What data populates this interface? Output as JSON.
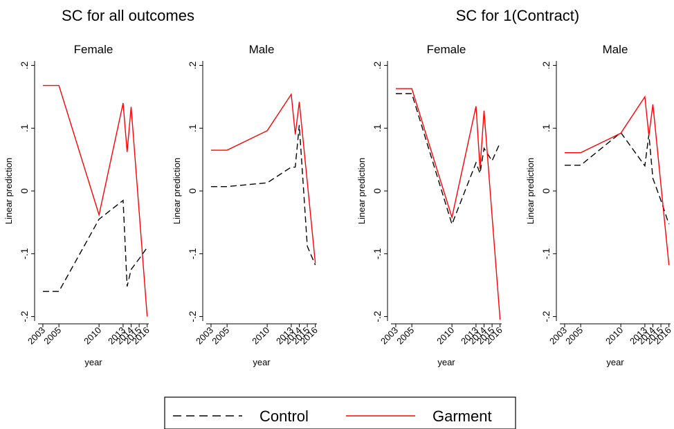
{
  "figure_titles": [
    "SC for all outcomes",
    "SC for 1(Contract)"
  ],
  "chart_data": [
    {
      "type": "line",
      "title": "Female",
      "ylabel": "Linear prediction",
      "xlabel": "year",
      "x": [
        2003,
        2005,
        2010,
        2013,
        2013.5,
        2014,
        2015,
        2016
      ],
      "xlim": [
        2002.4,
        2016.2
      ],
      "xticks": [
        2003,
        2005,
        2010,
        2013,
        2014,
        2015,
        2016
      ],
      "ylim": [
        -0.205,
        0.205
      ],
      "yticks": [
        {
          "value": -0.2,
          "label": "-.2"
        },
        {
          "value": -0.1,
          "label": "-.1"
        },
        0,
        {
          "value": 0.1,
          "label": ".1"
        },
        {
          "value": 0.2,
          "label": ".2"
        }
      ],
      "series": [
        {
          "name": "Control",
          "color": "#000000",
          "dash": true,
          "values": [
            -0.16,
            -0.16,
            -0.045,
            -0.015,
            -0.152,
            -0.125,
            -0.108,
            -0.09
          ]
        },
        {
          "name": "Garment",
          "color": "#ff0000",
          "dash": false,
          "values": [
            0.168,
            0.168,
            -0.038,
            0.14,
            0.062,
            0.134,
            -0.033,
            -0.2
          ]
        }
      ]
    },
    {
      "type": "line",
      "title": "Male",
      "ylabel": "Linear prediction",
      "xlabel": "year",
      "x": [
        2003,
        2005,
        2010,
        2013,
        2013.5,
        2014,
        2015,
        2016
      ],
      "xlim": [
        2002.4,
        2016.2
      ],
      "xticks": [
        2003,
        2005,
        2010,
        2013,
        2014,
        2015,
        2016
      ],
      "ylim": [
        -0.205,
        0.205
      ],
      "yticks": [
        {
          "value": -0.2,
          "label": "-.2"
        },
        {
          "value": -0.1,
          "label": "-.1"
        },
        0,
        {
          "value": 0.1,
          "label": ".1"
        },
        {
          "value": 0.2,
          "label": ".2"
        }
      ],
      "series": [
        {
          "name": "Control",
          "color": "#000000",
          "dash": true,
          "values": [
            0.007,
            0.007,
            0.013,
            0.038,
            0.038,
            0.105,
            -0.088,
            -0.118
          ]
        },
        {
          "name": "Garment",
          "color": "#ff0000",
          "dash": false,
          "values": [
            0.065,
            0.065,
            0.096,
            0.154,
            0.09,
            0.142,
            0.014,
            -0.115
          ]
        }
      ]
    },
    {
      "type": "line",
      "title": "Female",
      "ylabel": "Linear prediction",
      "xlabel": "year",
      "x": [
        2003,
        2005,
        2010,
        2013,
        2013.5,
        2014,
        2015,
        2016
      ],
      "xlim": [
        2002.4,
        2016.2
      ],
      "xticks": [
        2003,
        2005,
        2010,
        2013,
        2014,
        2015,
        2016
      ],
      "ylim": [
        -0.205,
        0.205
      ],
      "yticks": [
        {
          "value": -0.2,
          "label": "-.2"
        },
        {
          "value": -0.1,
          "label": "-.1"
        },
        0,
        {
          "value": 0.1,
          "label": ".1"
        },
        {
          "value": 0.2,
          "label": ".2"
        }
      ],
      "series": [
        {
          "name": "Control",
          "color": "#000000",
          "dash": true,
          "values": [
            0.155,
            0.155,
            -0.053,
            0.045,
            0.028,
            0.068,
            0.048,
            0.077
          ]
        },
        {
          "name": "Garment",
          "color": "#ff0000",
          "dash": false,
          "values": [
            0.163,
            0.163,
            -0.042,
            0.135,
            0.035,
            0.128,
            -0.04,
            -0.205
          ]
        }
      ]
    },
    {
      "type": "line",
      "title": "Male",
      "ylabel": "Linear prediction",
      "xlabel": "year",
      "x": [
        2003,
        2005,
        2010,
        2013,
        2013.5,
        2014,
        2015,
        2016
      ],
      "xlim": [
        2002.4,
        2016.2
      ],
      "xticks": [
        2003,
        2005,
        2010,
        2013,
        2014,
        2015,
        2016
      ],
      "ylim": [
        -0.205,
        0.205
      ],
      "yticks": [
        {
          "value": -0.2,
          "label": "-.2"
        },
        {
          "value": -0.1,
          "label": "-.1"
        },
        0,
        {
          "value": 0.1,
          "label": ".1"
        },
        {
          "value": 0.2,
          "label": ".2"
        }
      ],
      "series": [
        {
          "name": "Control",
          "color": "#000000",
          "dash": true,
          "values": [
            0.041,
            0.041,
            0.093,
            0.04,
            0.09,
            0.02,
            -0.015,
            -0.053
          ]
        },
        {
          "name": "Garment",
          "color": "#ff0000",
          "dash": false,
          "values": [
            0.061,
            0.061,
            0.092,
            0.15,
            0.088,
            0.138,
            0.01,
            -0.118
          ]
        }
      ]
    }
  ]
}
